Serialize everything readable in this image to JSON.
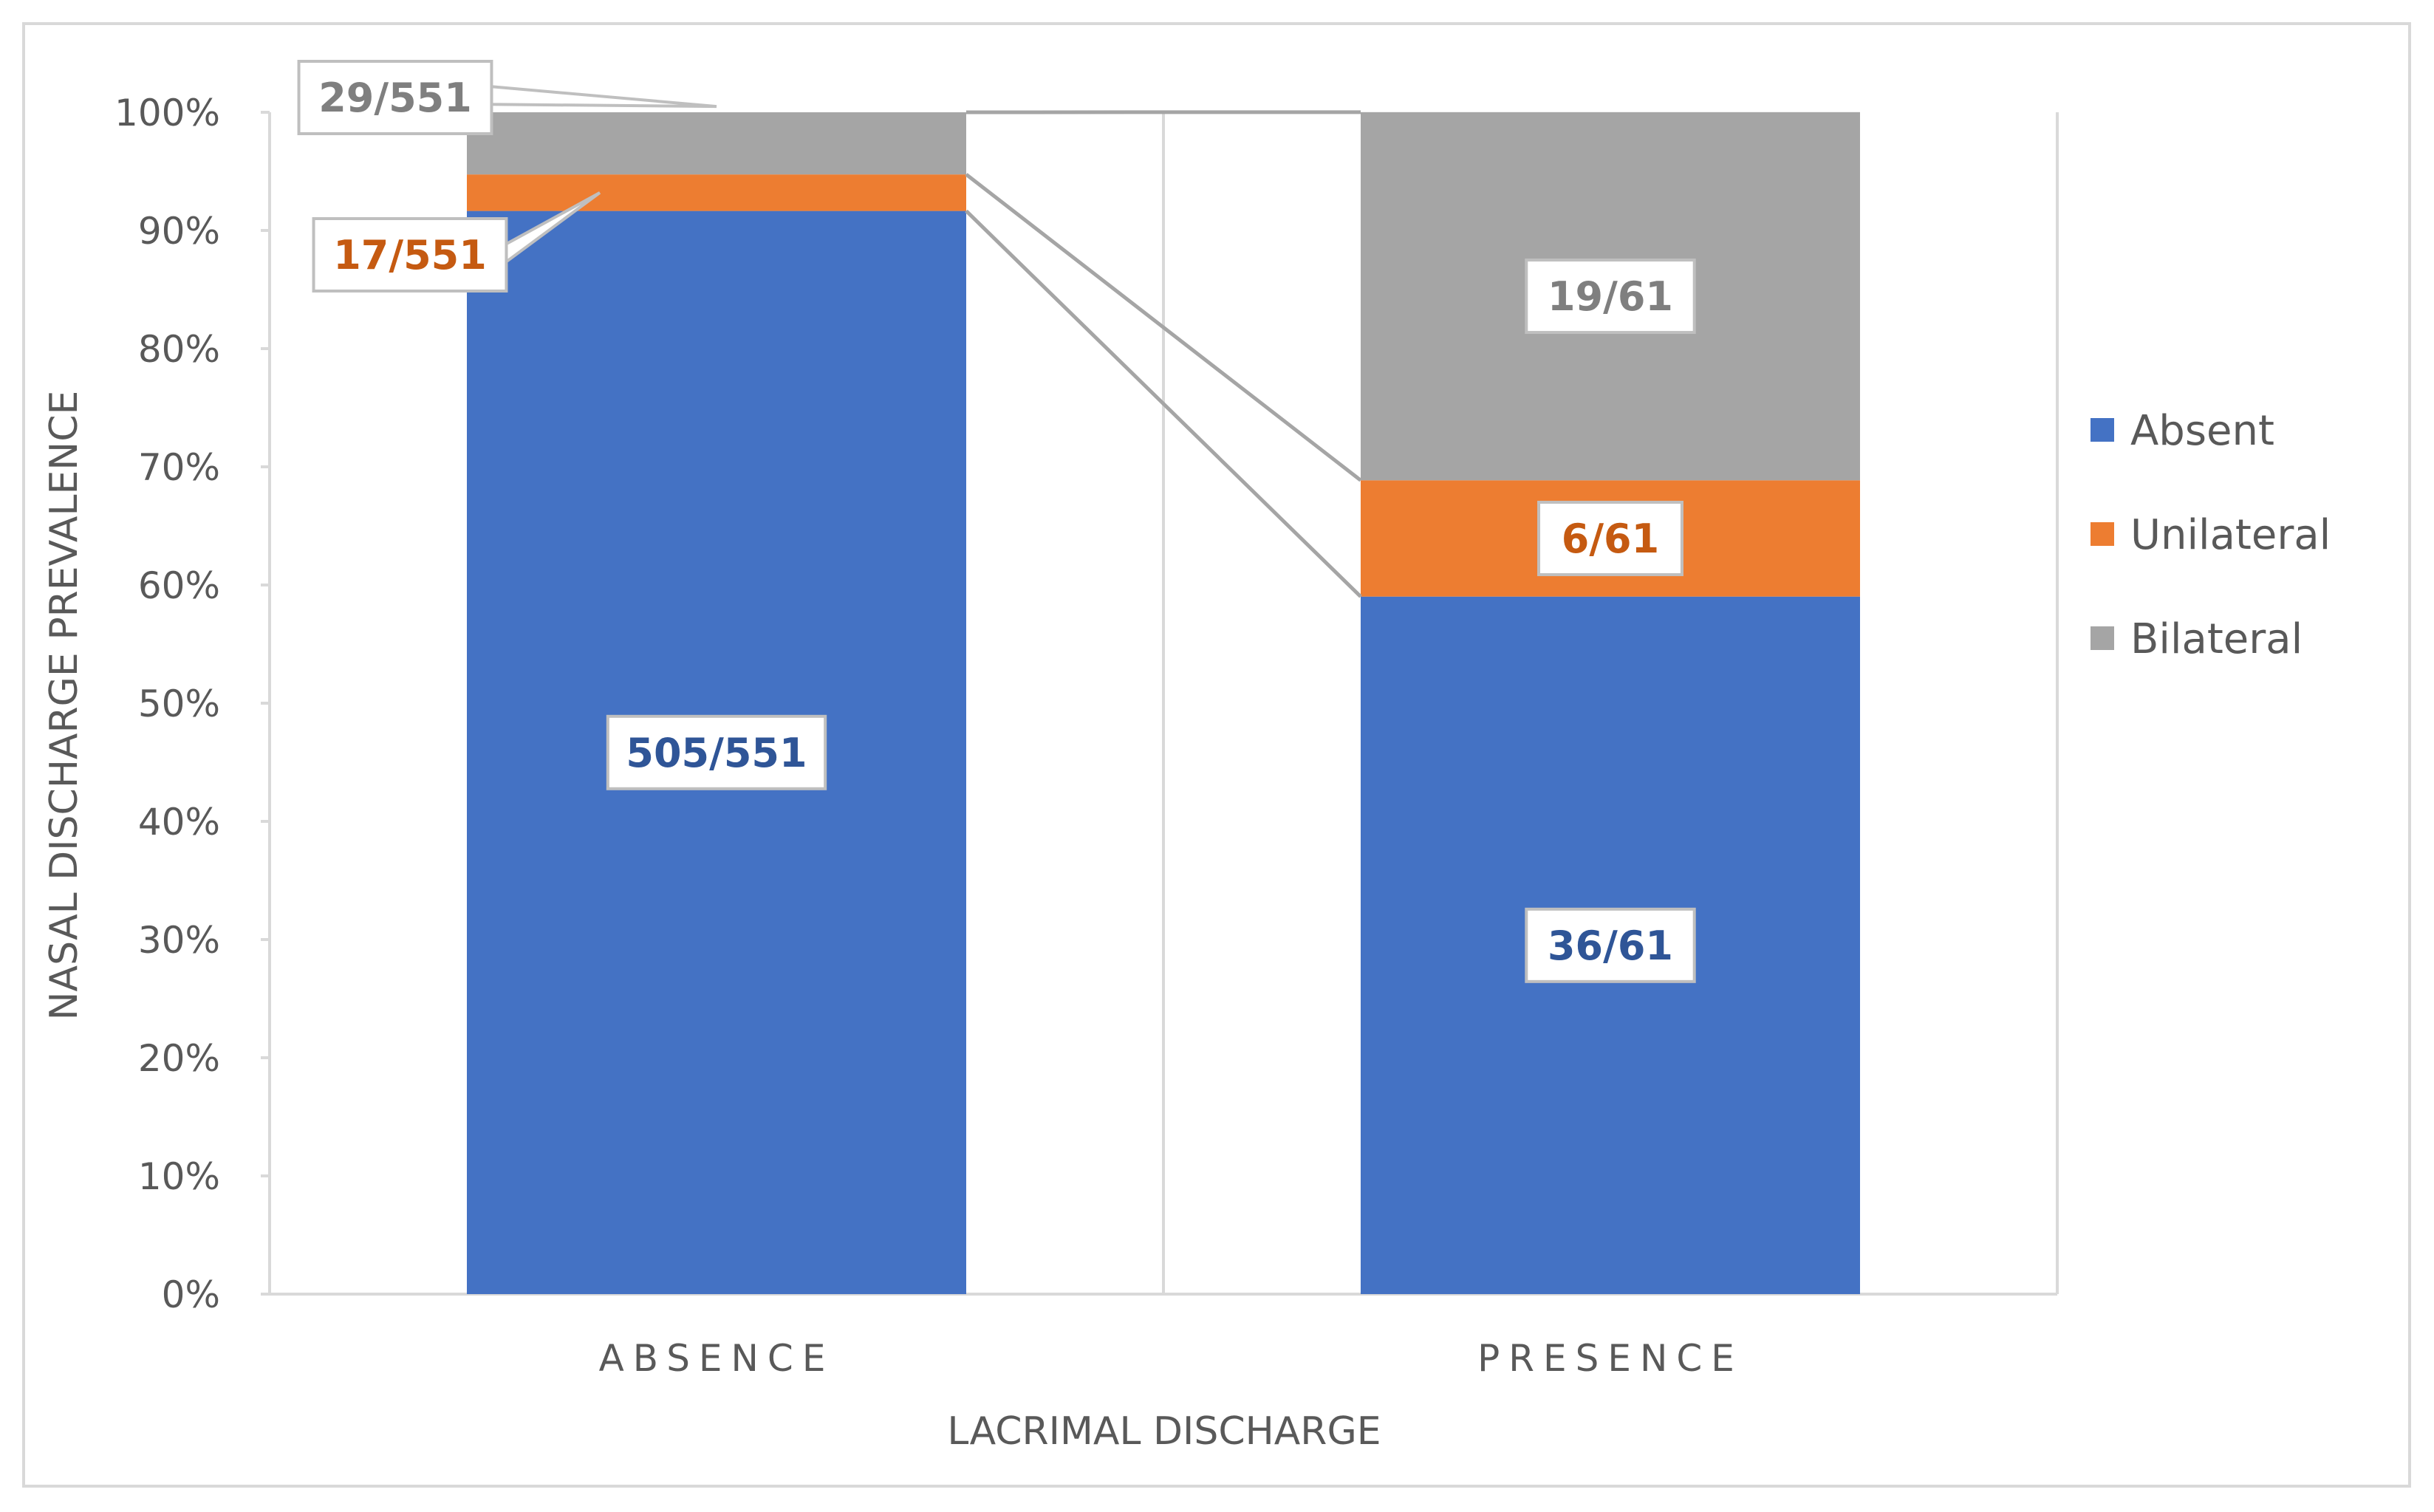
{
  "chart_data": {
    "type": "bar",
    "stacked": true,
    "normalized": true,
    "categories": [
      "ABSENCE",
      "PRESENCE"
    ],
    "series": [
      {
        "name": "Absent",
        "values": [
          91.65,
          59.02
        ],
        "labels": [
          "505/551",
          "36/61"
        ],
        "color": "#4472C4",
        "label_color": "#2F5597"
      },
      {
        "name": "Unilateral",
        "values": [
          3.09,
          9.84
        ],
        "labels": [
          "17/551",
          "6/61"
        ],
        "color": "#ED7D31",
        "label_color": "#C55A11"
      },
      {
        "name": "Bilateral",
        "values": [
          5.26,
          31.15
        ],
        "labels": [
          "29/551",
          "19/61"
        ],
        "color": "#A5A5A5",
        "label_color": "#7F7F7F"
      }
    ],
    "xlabel": "LACRIMAL DISCHARGE",
    "ylabel": "NASAL DISCHARGE PREVALENCE",
    "ylim": [
      0,
      100
    ],
    "yticks": [
      "0%",
      "10%",
      "20%",
      "30%",
      "40%",
      "50%",
      "60%",
      "70%",
      "80%",
      "90%",
      "100%"
    ],
    "series_lines": true,
    "grid": false,
    "legend_position": "right"
  }
}
